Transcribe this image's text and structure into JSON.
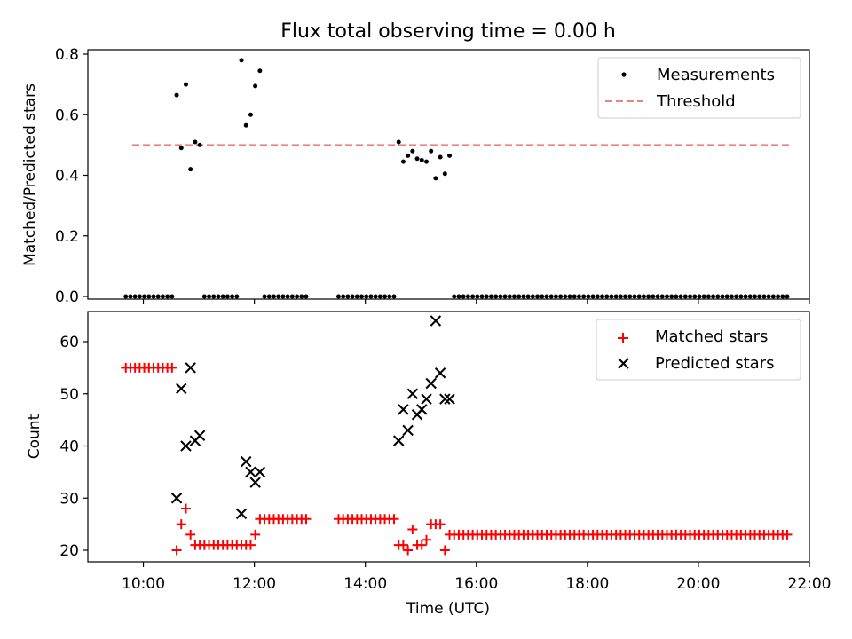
{
  "title": "Flux total observing time = 0.00 h",
  "chart_data": [
    {
      "type": "scatter",
      "ylabel": "Matched/Predicted stars",
      "ylim": [
        0,
        0.82
      ],
      "yticks": [
        "0.0",
        "0.2",
        "0.4",
        "0.6",
        "0.8"
      ],
      "legend_placement": "top-right",
      "legend": [
        "Measurements",
        "Threshold"
      ],
      "threshold": {
        "name": "Threshold",
        "value": 0.5,
        "x_start": "09:48",
        "x_end": "21:42",
        "color": "#f08080"
      },
      "series": [
        {
          "name": "Measurements",
          "color": "#000000",
          "points": [
            [
              "10:36",
              0.665
            ],
            [
              "10:41",
              0.49
            ],
            [
              "10:46",
              0.7
            ],
            [
              "10:51",
              0.42
            ],
            [
              "10:56",
              0.51
            ],
            [
              "11:01",
              0.5
            ],
            [
              "11:46",
              0.78
            ],
            [
              "11:51",
              0.565
            ],
            [
              "11:56",
              0.6
            ],
            [
              "12:01",
              0.695
            ],
            [
              "12:06",
              0.745
            ],
            [
              "14:36",
              0.51
            ],
            [
              "14:41",
              0.445
            ],
            [
              "14:46",
              0.465
            ],
            [
              "14:51",
              0.48
            ],
            [
              "14:56",
              0.455
            ],
            [
              "15:01",
              0.45
            ],
            [
              "15:06",
              0.445
            ],
            [
              "15:11",
              0.48
            ],
            [
              "15:16",
              0.39
            ],
            [
              "15:21",
              0.46
            ],
            [
              "15:26",
              0.405
            ],
            [
              "15:31",
              0.465
            ]
          ],
          "zero_runs": [
            [
              "09:41",
              "10:31"
            ],
            [
              "11:06",
              "11:41"
            ],
            [
              "12:11",
              "12:56"
            ],
            [
              "13:31",
              "14:31"
            ],
            [
              "15:36",
              "21:36"
            ]
          ]
        }
      ]
    },
    {
      "type": "scatter",
      "xlabel": "Time (UTC)",
      "ylabel": "Count",
      "ylim": [
        18,
        66
      ],
      "yticks": [
        "20",
        "30",
        "40",
        "50",
        "60"
      ],
      "xlim": [
        "09:00",
        "22:00"
      ],
      "xticks": [
        "10:00",
        "12:00",
        "14:00",
        "16:00",
        "18:00",
        "20:00",
        "22:00"
      ],
      "legend_placement": "top-right",
      "legend": [
        "Matched stars",
        "Predicted stars"
      ],
      "series": [
        {
          "name": "Matched stars",
          "color": "#ff0000",
          "runs": [
            {
              "from": "09:41",
              "to": "10:31",
              "value": 55
            },
            {
              "from": "11:06",
              "to": "11:41",
              "value": 21
            },
            {
              "from": "12:11",
              "to": "12:56",
              "value": 26
            },
            {
              "from": "13:31",
              "to": "14:31",
              "value": 26
            },
            {
              "from": "15:36",
              "to": "21:36",
              "value": 23
            }
          ],
          "points": [
            [
              "10:36",
              20
            ],
            [
              "10:41",
              25
            ],
            [
              "10:46",
              28
            ],
            [
              "10:51",
              23
            ],
            [
              "10:56",
              21
            ],
            [
              "11:01",
              21
            ],
            [
              "11:46",
              21
            ],
            [
              "11:51",
              21
            ],
            [
              "11:56",
              21
            ],
            [
              "12:01",
              23
            ],
            [
              "12:06",
              26
            ],
            [
              "14:36",
              21
            ],
            [
              "14:41",
              21
            ],
            [
              "14:46",
              20
            ],
            [
              "14:51",
              24
            ],
            [
              "14:56",
              21
            ],
            [
              "15:01",
              21
            ],
            [
              "15:06",
              22
            ],
            [
              "15:11",
              25
            ],
            [
              "15:16",
              25
            ],
            [
              "15:21",
              25
            ],
            [
              "15:26",
              20
            ],
            [
              "15:31",
              23
            ]
          ]
        },
        {
          "name": "Predicted stars",
          "color": "#000000",
          "points": [
            [
              "10:36",
              30
            ],
            [
              "10:41",
              51
            ],
            [
              "10:46",
              40
            ],
            [
              "10:51",
              55
            ],
            [
              "10:56",
              41
            ],
            [
              "11:01",
              42
            ],
            [
              "11:46",
              27
            ],
            [
              "11:51",
              37
            ],
            [
              "11:56",
              35
            ],
            [
              "12:01",
              33
            ],
            [
              "12:06",
              35
            ],
            [
              "14:36",
              41
            ],
            [
              "14:41",
              47
            ],
            [
              "14:46",
              43
            ],
            [
              "14:51",
              50
            ],
            [
              "14:56",
              46
            ],
            [
              "15:01",
              47
            ],
            [
              "15:06",
              49
            ],
            [
              "15:11",
              52
            ],
            [
              "15:16",
              64
            ],
            [
              "15:21",
              54
            ],
            [
              "15:26",
              49
            ],
            [
              "15:31",
              49
            ]
          ]
        }
      ]
    }
  ]
}
